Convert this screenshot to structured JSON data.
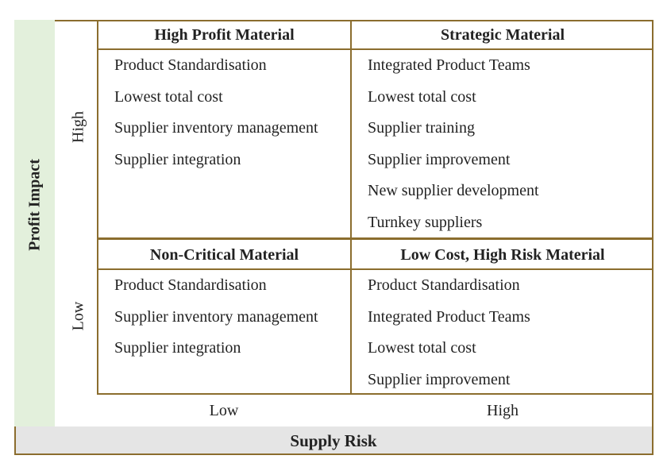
{
  "y_axis": {
    "title": "Profit Impact",
    "high": "High",
    "low": "Low"
  },
  "x_axis": {
    "title": "Supply Risk",
    "low": "Low",
    "high": "High"
  },
  "quadrants": {
    "top_left": {
      "title": "High Profit Material",
      "items": [
        "Product Standardisation",
        "Lowest total cost",
        "Supplier inventory management",
        "Supplier integration"
      ]
    },
    "top_right": {
      "title": "Strategic Material",
      "items": [
        "Integrated Product Teams",
        "Lowest total cost",
        "Supplier training",
        "Supplier improvement",
        "New supplier development",
        "Turnkey suppliers"
      ]
    },
    "bottom_left": {
      "title": "Non-Critical Material",
      "items": [
        "Product Standardisation",
        "Supplier inventory management",
        "Supplier integration"
      ]
    },
    "bottom_right": {
      "title": "Low Cost, High Risk Material",
      "items": [
        "Product Standardisation",
        "Integrated Product Teams",
        "Lowest total cost",
        "Supplier improvement"
      ]
    }
  },
  "colors": {
    "border": "#8b6d2e",
    "y_strip": "#e3f0dc",
    "x_strip": "#e5e5e5"
  }
}
